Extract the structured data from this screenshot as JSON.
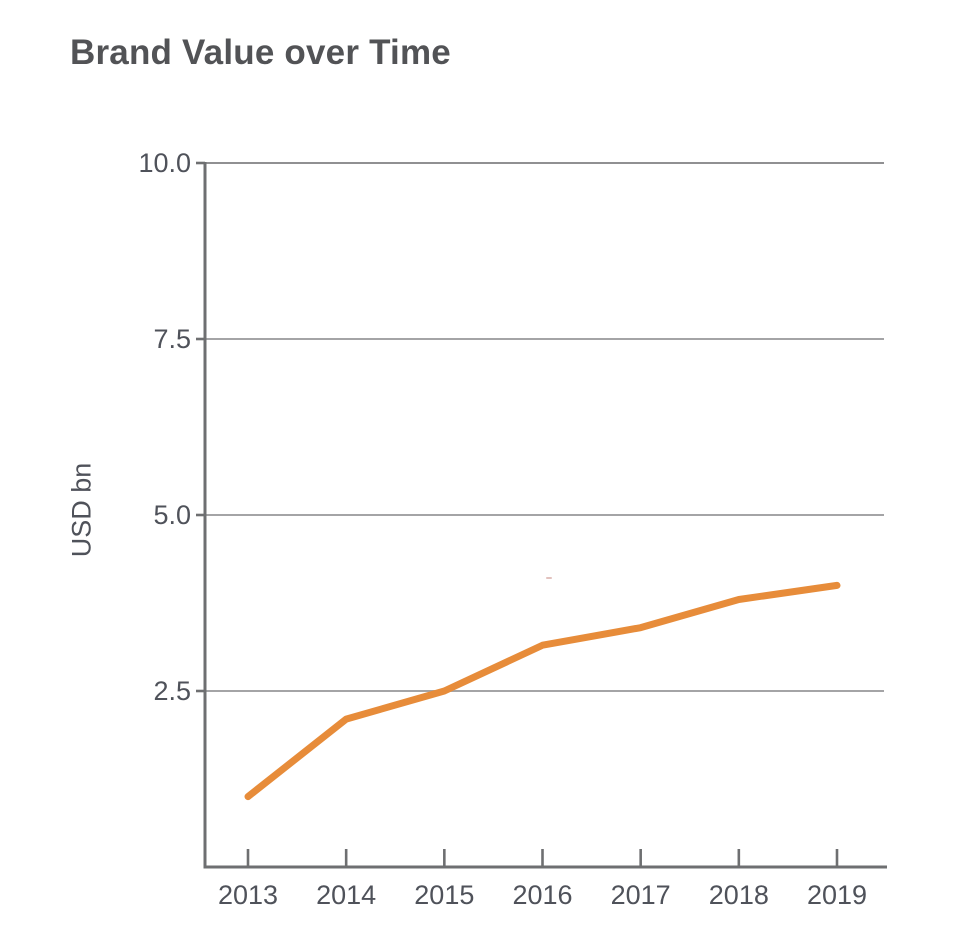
{
  "chart_data": {
    "type": "line",
    "title": "Brand Value over Time",
    "xlabel": "",
    "ylabel": "USD bn",
    "categories": [
      "2013",
      "2014",
      "2015",
      "2016",
      "2017",
      "2018",
      "2019"
    ],
    "series": [
      {
        "name": "Brand Value",
        "values": [
          1.0,
          2.1,
          2.5,
          3.15,
          3.4,
          3.8,
          4.0
        ]
      }
    ],
    "ylim": [
      0,
      10
    ],
    "yticks": [
      2.5,
      5.0,
      7.5,
      10.0
    ],
    "ytick_labels": [
      "2.5",
      "5.0",
      "7.5",
      "10.0"
    ],
    "grid": true,
    "legend_position": "none",
    "colors": {
      "line": "#E78C3A",
      "axis": "#6E6F71",
      "grid": "#A4A4A6",
      "tick_text": "#4F525A",
      "title_text": "#525356",
      "background": "#FFFFFF"
    }
  }
}
